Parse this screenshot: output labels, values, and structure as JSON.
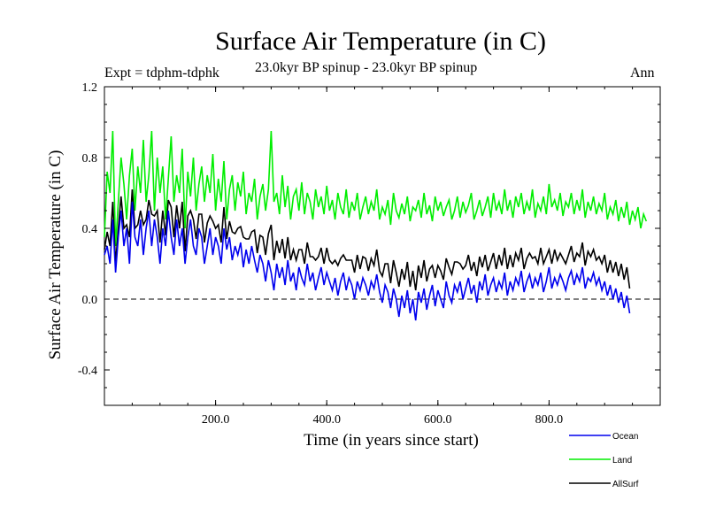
{
  "chart_data": {
    "type": "line",
    "title": "Surface Air Temperature (in C)",
    "subtitle_left": "Expt = tdphm-tdphk",
    "subtitle_center": "23.0kyr BP spinup - 23.0kyr BP spinup",
    "subtitle_right": "Ann",
    "xlabel": "Time (in years since start)",
    "ylabel": "Surface Air Temperature (in C)",
    "xlim": [
      0,
      1000
    ],
    "ylim": [
      -0.6,
      1.2
    ],
    "xticks": [
      200,
      400,
      600,
      800
    ],
    "xtick_labels": [
      "200.0",
      "400.0",
      "600.0",
      "800.0"
    ],
    "yticks": [
      -0.4,
      0.0,
      0.4,
      0.8,
      1.2
    ],
    "ytick_labels": [
      "-0.4",
      "0.0",
      "0.4",
      "0.8",
      "1.2"
    ],
    "reference_line": 0.0,
    "legend_position": "bottom-right",
    "series": [
      {
        "name": "Land",
        "color": "#00ee00",
        "x_step": 5,
        "values": [
          0.35,
          0.72,
          0.6,
          0.95,
          0.3,
          0.55,
          0.8,
          0.65,
          0.45,
          0.7,
          0.85,
          0.5,
          0.75,
          0.6,
          0.9,
          0.55,
          0.7,
          0.95,
          0.5,
          0.8,
          0.6,
          0.75,
          0.45,
          0.68,
          0.92,
          0.55,
          0.7,
          0.6,
          0.85,
          0.4,
          0.72,
          0.58,
          0.8,
          0.5,
          0.65,
          0.75,
          0.55,
          0.7,
          0.6,
          0.82,
          0.5,
          0.68,
          0.55,
          0.78,
          0.45,
          0.62,
          0.7,
          0.5,
          0.66,
          0.58,
          0.72,
          0.48,
          0.6,
          0.55,
          0.68,
          0.45,
          0.58,
          0.65,
          0.5,
          0.62,
          0.95,
          0.55,
          0.6,
          0.48,
          0.7,
          0.52,
          0.64,
          0.45,
          0.58,
          0.62,
          0.5,
          0.66,
          0.48,
          0.6,
          0.55,
          0.45,
          0.62,
          0.52,
          0.58,
          0.48,
          0.64,
          0.5,
          0.56,
          0.45,
          0.6,
          0.52,
          0.48,
          0.62,
          0.46,
          0.55,
          0.5,
          0.6,
          0.45,
          0.52,
          0.58,
          0.48,
          0.55,
          0.5,
          0.62,
          0.45,
          0.52,
          0.48,
          0.56,
          0.42,
          0.6,
          0.5,
          0.46,
          0.54,
          0.48,
          0.58,
          0.44,
          0.52,
          0.5,
          0.56,
          0.46,
          0.6,
          0.48,
          0.53,
          0.44,
          0.58,
          0.5,
          0.55,
          0.47,
          0.52,
          0.56,
          0.45,
          0.5,
          0.58,
          0.46,
          0.55,
          0.49,
          0.53,
          0.6,
          0.45,
          0.5,
          0.56,
          0.47,
          0.52,
          0.58,
          0.46,
          0.6,
          0.5,
          0.55,
          0.48,
          0.62,
          0.5,
          0.56,
          0.46,
          0.58,
          0.52,
          0.6,
          0.48,
          0.55,
          0.5,
          0.62,
          0.46,
          0.54,
          0.5,
          0.58,
          0.48,
          0.65,
          0.52,
          0.56,
          0.5,
          0.6,
          0.47,
          0.55,
          0.52,
          0.6,
          0.48,
          0.56,
          0.5,
          0.62,
          0.46,
          0.55,
          0.5,
          0.58,
          0.48,
          0.54,
          0.5,
          0.6,
          0.45,
          0.52,
          0.48,
          0.56,
          0.44,
          0.52,
          0.46,
          0.55,
          0.42,
          0.5,
          0.45,
          0.52,
          0.4,
          0.48,
          0.44
        ]
      },
      {
        "name": "Ocean",
        "color": "#0000ee",
        "x_step": 5,
        "values": [
          0.25,
          0.3,
          0.2,
          0.45,
          0.15,
          0.35,
          0.5,
          0.3,
          0.4,
          0.2,
          0.55,
          0.35,
          0.3,
          0.45,
          0.25,
          0.4,
          0.5,
          0.3,
          0.45,
          0.35,
          0.2,
          0.4,
          0.3,
          0.5,
          0.35,
          0.25,
          0.45,
          0.3,
          0.4,
          0.2,
          0.35,
          0.45,
          0.3,
          0.25,
          0.4,
          0.35,
          0.2,
          0.3,
          0.4,
          0.25,
          0.35,
          0.3,
          0.2,
          0.4,
          0.28,
          0.35,
          0.22,
          0.3,
          0.25,
          0.32,
          0.18,
          0.28,
          0.2,
          0.3,
          0.22,
          0.15,
          0.25,
          0.2,
          0.1,
          0.22,
          0.15,
          0.05,
          0.2,
          0.12,
          0.18,
          0.08,
          0.22,
          0.1,
          0.15,
          0.05,
          0.18,
          0.12,
          0.08,
          0.2,
          0.1,
          0.15,
          0.05,
          0.12,
          0.18,
          0.08,
          0.15,
          0.1,
          0.05,
          0.12,
          0.02,
          0.1,
          0.15,
          0.05,
          0.12,
          0.08,
          0.0,
          0.1,
          0.05,
          0.12,
          0.08,
          0.02,
          0.1,
          0.06,
          0.14,
          0.04,
          -0.02,
          0.08,
          0.04,
          -0.05,
          0.06,
          0.0,
          -0.1,
          0.02,
          -0.05,
          0.05,
          -0.08,
          0.0,
          -0.12,
          0.04,
          -0.02,
          0.06,
          -0.06,
          0.02,
          0.08,
          -0.04,
          0.05,
          0.0,
          -0.05,
          0.1,
          0.02,
          -0.02,
          0.08,
          0.04,
          0.1,
          0.0,
          0.06,
          0.12,
          0.03,
          0.08,
          -0.02,
          0.1,
          0.05,
          0.14,
          0.02,
          0.08,
          0.12,
          0.04,
          0.1,
          0.06,
          0.15,
          0.02,
          0.1,
          0.05,
          0.12,
          0.08,
          0.16,
          0.04,
          0.1,
          0.14,
          0.06,
          0.12,
          0.08,
          0.15,
          0.04,
          0.1,
          0.18,
          0.06,
          0.12,
          0.08,
          0.14,
          0.1,
          0.05,
          0.12,
          0.16,
          0.08,
          0.14,
          0.1,
          0.18,
          0.06,
          0.12,
          0.1,
          0.15,
          0.08,
          0.12,
          0.05,
          0.1,
          0.02,
          0.08,
          0.0,
          0.06,
          -0.02,
          0.04,
          -0.05,
          0.02,
          -0.08
        ]
      },
      {
        "name": "AllSurf",
        "color": "#000000",
        "x_step": 5,
        "values": [
          0.28,
          0.38,
          0.3,
          0.55,
          0.2,
          0.4,
          0.58,
          0.4,
          0.42,
          0.35,
          0.62,
          0.4,
          0.42,
          0.5,
          0.42,
          0.45,
          0.56,
          0.48,
          0.47,
          0.5,
          0.32,
          0.5,
          0.36,
          0.56,
          0.52,
          0.35,
          0.53,
          0.4,
          0.55,
          0.27,
          0.47,
          0.5,
          0.45,
          0.34,
          0.48,
          0.48,
          0.32,
          0.43,
          0.47,
          0.44,
          0.4,
          0.42,
          0.32,
          0.52,
          0.34,
          0.44,
          0.38,
          0.37,
          0.4,
          0.41,
          0.35,
          0.34,
          0.34,
          0.38,
          0.39,
          0.26,
          0.36,
          0.35,
          0.25,
          0.37,
          0.42,
          0.22,
          0.33,
          0.26,
          0.34,
          0.23,
          0.35,
          0.22,
          0.28,
          0.22,
          0.28,
          0.28,
          0.2,
          0.32,
          0.24,
          0.24,
          0.22,
          0.24,
          0.29,
          0.2,
          0.29,
          0.22,
          0.2,
          0.22,
          0.19,
          0.23,
          0.25,
          0.22,
          0.22,
          0.22,
          0.15,
          0.25,
          0.17,
          0.24,
          0.23,
          0.16,
          0.23,
          0.19,
          0.28,
          0.16,
          0.13,
          0.2,
          0.2,
          0.09,
          0.22,
          0.15,
          0.07,
          0.17,
          0.11,
          0.21,
          0.07,
          0.16,
          0.05,
          0.19,
          0.12,
          0.22,
          0.1,
          0.17,
          0.19,
          0.12,
          0.19,
          0.16,
          0.11,
          0.23,
          0.18,
          0.14,
          0.21,
          0.21,
          0.2,
          0.17,
          0.19,
          0.25,
          0.16,
          0.21,
          0.13,
          0.24,
          0.18,
          0.25,
          0.16,
          0.21,
          0.26,
          0.17,
          0.25,
          0.19,
          0.29,
          0.17,
          0.25,
          0.18,
          0.26,
          0.22,
          0.29,
          0.17,
          0.23,
          0.26,
          0.23,
          0.24,
          0.2,
          0.29,
          0.2,
          0.24,
          0.28,
          0.2,
          0.28,
          0.22,
          0.26,
          0.23,
          0.2,
          0.25,
          0.3,
          0.21,
          0.26,
          0.24,
          0.32,
          0.19,
          0.27,
          0.24,
          0.28,
          0.22,
          0.24,
          0.2,
          0.25,
          0.15,
          0.22,
          0.15,
          0.21,
          0.13,
          0.2,
          0.11,
          0.18,
          0.06
        ]
      }
    ]
  }
}
